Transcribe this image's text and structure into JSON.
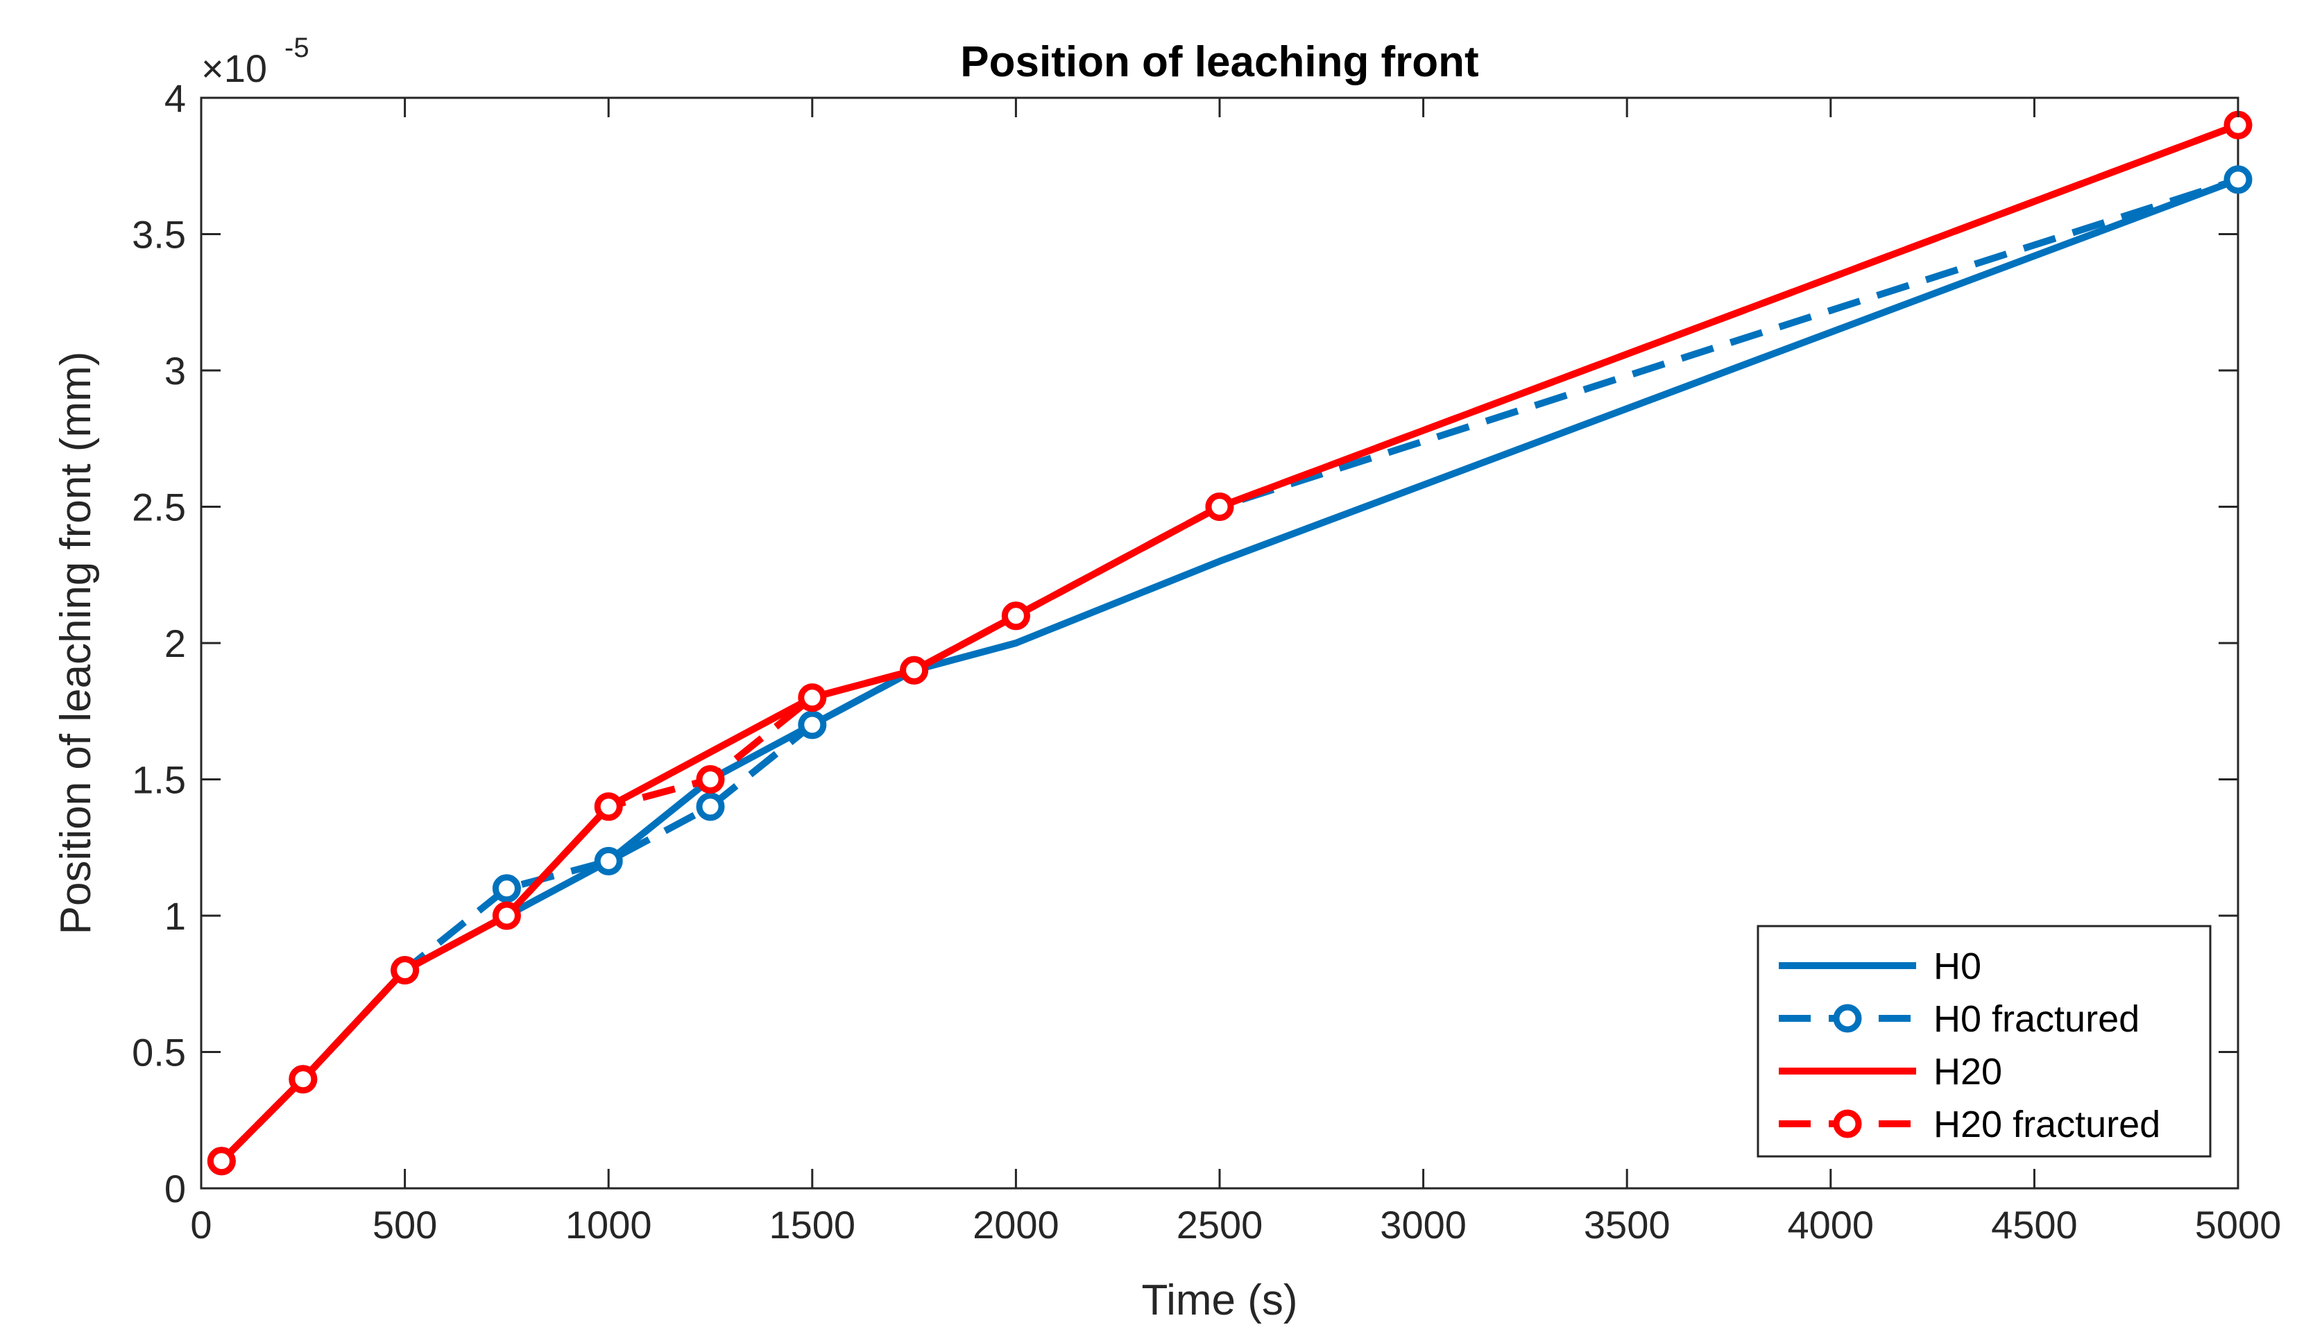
{
  "chart_data": {
    "type": "line",
    "title": "Position of leaching front",
    "xlabel": "Time (s)",
    "ylabel": "Position of leaching front (mm)",
    "y_exponent": {
      "base": "×10",
      "power": "-5"
    },
    "xlim": [
      0,
      5000
    ],
    "ylim": [
      0,
      4e-05
    ],
    "x_ticks": [
      0,
      500,
      1000,
      1500,
      2000,
      2500,
      3000,
      3500,
      4000,
      4500,
      5000
    ],
    "x_tick_labels": [
      "0",
      "500",
      "1000",
      "1500",
      "2000",
      "2500",
      "3000",
      "3500",
      "4000",
      "4500",
      "5000"
    ],
    "y_ticks": [
      0,
      5e-06,
      1e-05,
      1.5e-05,
      2e-05,
      2.5e-05,
      3e-05,
      3.5e-05,
      4e-05
    ],
    "y_tick_labels": [
      "0",
      "0.5",
      "1",
      "1.5",
      "2",
      "2.5",
      "3",
      "3.5",
      "4"
    ],
    "grid": false,
    "legend_position": "bottom-right",
    "series": [
      {
        "name": "H0",
        "color": "#0072BD",
        "line_style": "solid",
        "marker": "none",
        "x": [
          50,
          250,
          500,
          750,
          1000,
          1250,
          1500,
          1750,
          2000,
          2500,
          5000
        ],
        "y": [
          1e-06,
          4e-06,
          8e-06,
          1e-05,
          1.2e-05,
          1.5e-05,
          1.7e-05,
          1.9e-05,
          2e-05,
          2.3e-05,
          3.7e-05
        ]
      },
      {
        "name": "H0 fractured",
        "color": "#0072BD",
        "line_style": "dashed",
        "marker": "circle",
        "x": [
          50,
          250,
          500,
          750,
          1000,
          1250,
          1500,
          1750,
          2000,
          2500,
          5000
        ],
        "y": [
          1e-06,
          4e-06,
          8e-06,
          1.1e-05,
          1.2e-05,
          1.4e-05,
          1.7e-05,
          1.9e-05,
          2.1e-05,
          2.5e-05,
          3.7e-05
        ]
      },
      {
        "name": "H20",
        "color": "#FF0000",
        "line_style": "solid",
        "marker": "none",
        "x": [
          50,
          250,
          500,
          750,
          1000,
          1250,
          1500,
          1750,
          2000,
          2500,
          5000
        ],
        "y": [
          1e-06,
          4e-06,
          8e-06,
          1e-05,
          1.4e-05,
          1.6e-05,
          1.8e-05,
          1.9e-05,
          2.1e-05,
          2.5e-05,
          3.9e-05
        ]
      },
      {
        "name": "H20 fractured",
        "color": "#FF0000",
        "line_style": "dashed",
        "marker": "circle",
        "x": [
          50,
          250,
          500,
          750,
          1000,
          1250,
          1500,
          1750,
          2000,
          2500,
          5000
        ],
        "y": [
          1e-06,
          4e-06,
          8e-06,
          1e-05,
          1.4e-05,
          1.5e-05,
          1.8e-05,
          1.9e-05,
          2.1e-05,
          2.5e-05,
          3.9e-05
        ]
      }
    ]
  }
}
